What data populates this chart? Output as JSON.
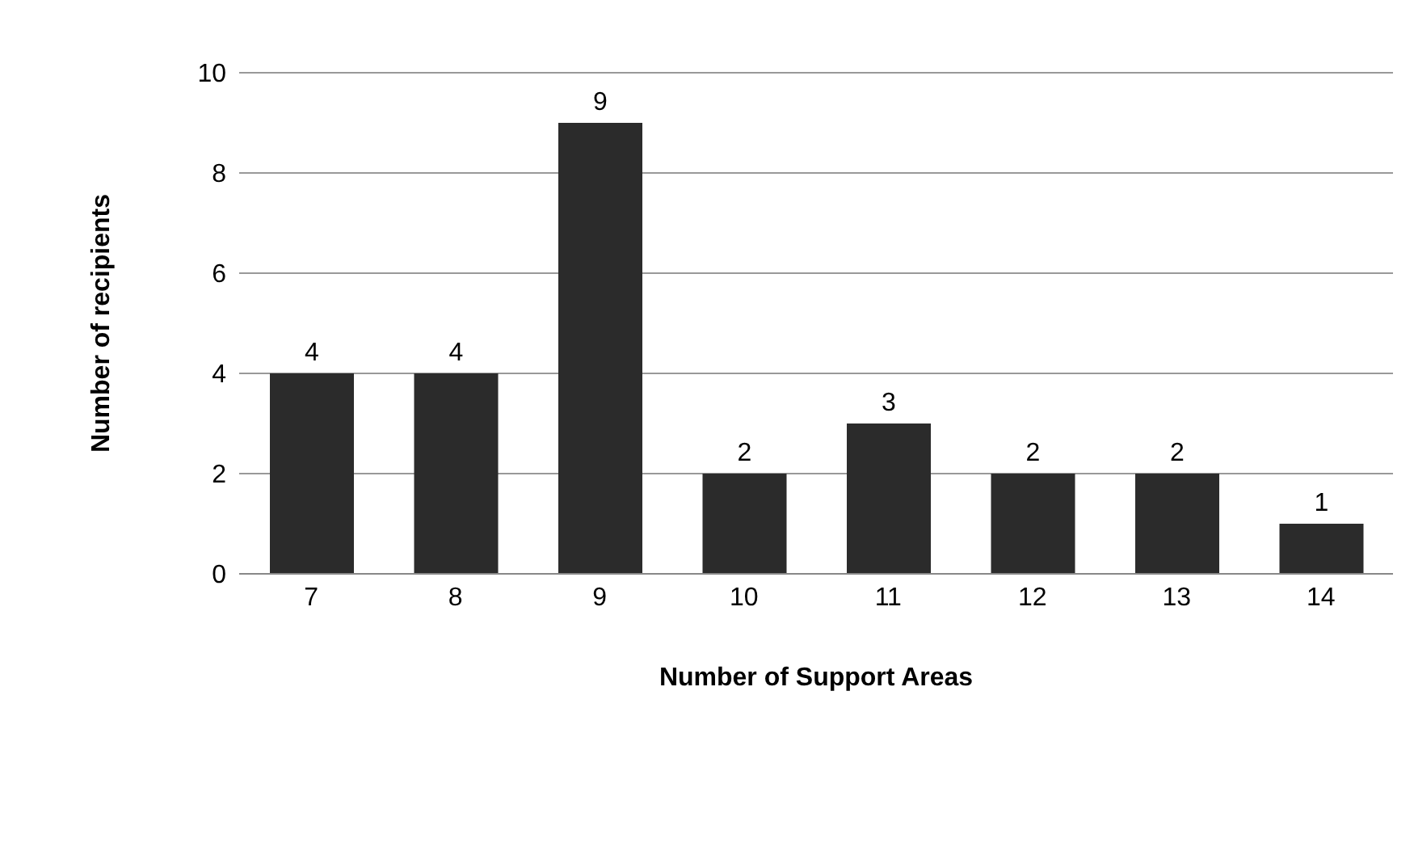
{
  "chart_data": {
    "type": "bar",
    "xlabel": "Number of Support Areas",
    "ylabel": "Number of recipients",
    "categories": [
      "7",
      "8",
      "9",
      "10",
      "11",
      "12",
      "13",
      "14"
    ],
    "values": [
      4,
      4,
      9,
      2,
      3,
      2,
      2,
      1
    ],
    "color": "#2b2b2b",
    "ylim": [
      0,
      10
    ],
    "yticks": [
      0,
      2,
      4,
      6,
      8,
      10
    ],
    "grid": "y",
    "data_labels": true
  }
}
